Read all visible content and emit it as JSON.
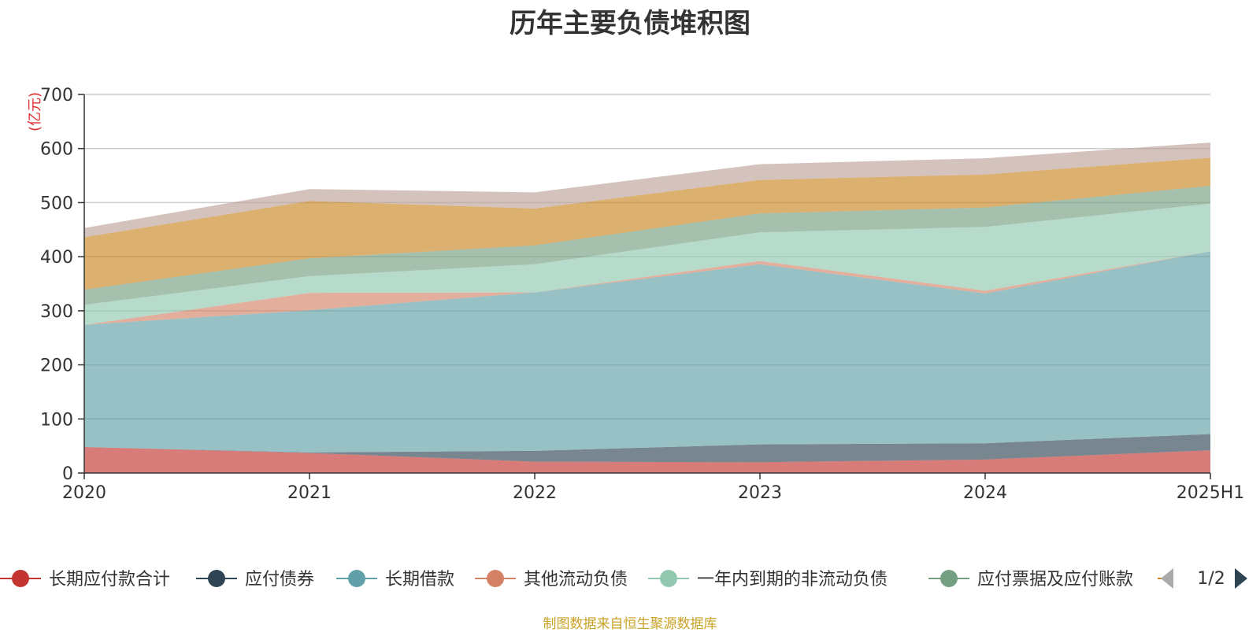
{
  "chart_data": {
    "type": "area",
    "title": "历年主要负债堆积图",
    "unit": "(亿元)",
    "categories": [
      "2020",
      "2021",
      "2022",
      "2023",
      "2024",
      "2025H1"
    ],
    "ylim": [
      0,
      700
    ],
    "yticks": [
      0,
      100,
      200,
      300,
      400,
      500,
      600,
      700
    ],
    "grid": true,
    "stacked": true,
    "series": [
      {
        "name": "长期应付款合计",
        "color": "#c23531",
        "values": [
          48,
          37,
          21,
          20,
          25,
          42
        ]
      },
      {
        "name": "应付债券",
        "color": "#2f4554",
        "values": [
          0,
          1,
          20,
          33,
          30,
          30
        ]
      },
      {
        "name": "长期借款",
        "color": "#61a0a8",
        "values": [
          226,
          263,
          293,
          333,
          277,
          338
        ]
      },
      {
        "name": "其他流动负债",
        "color": "#d48265",
        "values": [
          0,
          32,
          0,
          6,
          5,
          0
        ]
      },
      {
        "name": "一年内到期的非流动负债",
        "color": "#91c7ae",
        "values": [
          37,
          31,
          52,
          53,
          118,
          88
        ]
      },
      {
        "name": "应付票据及应付账款",
        "color": "#749f83",
        "values": [
          28,
          33,
          35,
          35,
          36,
          33
        ]
      },
      {
        "name": "",
        "color": "#ca8622",
        "values": [
          97,
          106,
          68,
          62,
          61,
          52
        ]
      },
      {
        "name": "",
        "color": "#bda29a",
        "values": [
          17,
          22,
          30,
          29,
          30,
          28
        ]
      }
    ],
    "legend": {
      "position": "bottom",
      "visible_entries": [
        "长期应付款合计",
        "应付债券",
        "长期借款",
        "其他流动负债",
        "一年内到期的非流动负债",
        "应付票据及应付账款"
      ],
      "page": "1/2"
    }
  },
  "source_note": "制图数据来自恒生聚源数据库",
  "colors": {
    "axis": "#333333",
    "grid": "#cccccc",
    "page_prev_disabled": "#aaaaaa",
    "page_next": "#2f4554"
  }
}
